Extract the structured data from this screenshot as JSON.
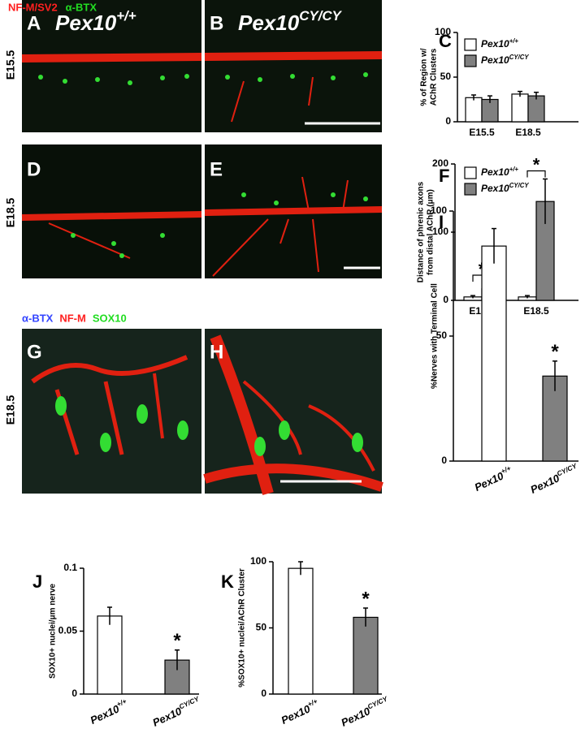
{
  "stain_labels_top": [
    {
      "text": "NF-M/SV2",
      "color": "#ff2020"
    },
    {
      "text": "α-BTX",
      "color": "#22dd22"
    }
  ],
  "stain_labels_bottom": [
    {
      "text": "α-BTX",
      "color": "#3344ff"
    },
    {
      "text": "NF-M",
      "color": "#ff2020"
    },
    {
      "text": "SOX10",
      "color": "#22dd22"
    }
  ],
  "row_labels": [
    "E15.5",
    "E18.5",
    "E18.5"
  ],
  "images": [
    {
      "label": "A",
      "genotype": "Pex10",
      "genotype_sup": "+/+"
    },
    {
      "label": "B",
      "genotype": "Pex10",
      "genotype_sup": "CY/CY"
    },
    {
      "label": "D"
    },
    {
      "label": "E"
    },
    {
      "label": "G"
    },
    {
      "label": "H"
    }
  ],
  "chart_data": [
    {
      "type": "bar",
      "panel": "C",
      "ylabel": [
        "% of Region w/",
        "AChR Clusters"
      ],
      "categories": [
        "E15.5",
        "E18.5"
      ],
      "series": [
        {
          "name": "Pex10",
          "name_sup": "+/+",
          "color": "#ffffff",
          "values": [
            27,
            31
          ],
          "errors": [
            3,
            3
          ]
        },
        {
          "name": "Pex10",
          "name_sup": "CY/CY",
          "color": "#808080",
          "values": [
            25,
            29
          ],
          "errors": [
            4,
            4
          ]
        }
      ],
      "ylim": [
        0,
        100
      ],
      "yticks": [
        0,
        50,
        100
      ]
    },
    {
      "type": "bar",
      "panel": "F",
      "ylabel": [
        "Distance of phrenic axons",
        "from distal AChR (μm)"
      ],
      "categories": [
        "E15.5",
        "E18.5"
      ],
      "series": [
        {
          "name": "Pex10",
          "name_sup": "+/+",
          "color": "#ffffff",
          "values": [
            5,
            5
          ],
          "errors": [
            2,
            2
          ]
        },
        {
          "name": "Pex10",
          "name_sup": "CY/CY",
          "color": "#808080",
          "values": [
            17,
            145
          ],
          "errors": [
            8,
            33
          ]
        }
      ],
      "ylim": [
        0,
        200
      ],
      "yticks": [
        0,
        100,
        200
      ],
      "annotations": [
        "*",
        "*"
      ]
    },
    {
      "type": "bar",
      "panel": "I",
      "ylabel": [
        "%Nerves with Terminal Cell"
      ],
      "categories": [
        "Pex10",
        "Pex10"
      ],
      "category_sups": [
        "+/+",
        "CY/CY"
      ],
      "values": [
        86,
        34
      ],
      "errors": [
        7,
        6
      ],
      "colors": [
        "#ffffff",
        "#808080"
      ],
      "ylim": [
        0,
        100
      ],
      "yticks": [
        0,
        50,
        100
      ],
      "annotations": [
        "*"
      ]
    },
    {
      "type": "bar",
      "panel": "J",
      "ylabel": [
        "SOX10+ nuclei/μm nerve"
      ],
      "categories": [
        "Pex10",
        "Pex10"
      ],
      "category_sups": [
        "+/+",
        "CY/CY"
      ],
      "values": [
        0.062,
        0.027
      ],
      "errors": [
        0.007,
        0.008
      ],
      "colors": [
        "#ffffff",
        "#808080"
      ],
      "ylim": [
        0,
        0.1
      ],
      "yticks": [
        0,
        0.05,
        0.1
      ],
      "annotations": [
        "*"
      ]
    },
    {
      "type": "bar",
      "panel": "K",
      "ylabel": [
        "%SOX10+ nuclei/AChR Cluster"
      ],
      "categories": [
        "Pex10",
        "Pex10"
      ],
      "category_sups": [
        "+/+",
        "CY/CY"
      ],
      "values": [
        95,
        58
      ],
      "errors": [
        5,
        7
      ],
      "colors": [
        "#ffffff",
        "#808080"
      ],
      "ylim": [
        0,
        100
      ],
      "yticks": [
        0,
        50,
        100
      ],
      "annotations": [
        "*"
      ]
    }
  ]
}
